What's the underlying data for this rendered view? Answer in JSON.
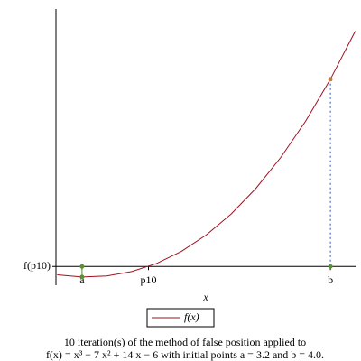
{
  "chart_data": {
    "type": "line",
    "x_label": "x",
    "series": [
      {
        "name": "f(x)",
        "color": "#a01020",
        "x": [
          3.12,
          3.2,
          3.28,
          3.36,
          3.44,
          3.52,
          3.6,
          3.68,
          3.76,
          3.84,
          3.92,
          4.0,
          4.08
        ],
        "values": [
          -0.089,
          -0.112,
          -0.101,
          -0.054,
          0.032,
          0.161,
          0.336,
          0.559,
          0.834,
          1.164,
          1.551,
          2,
          2.513
        ]
      }
    ],
    "points": {
      "x": [
        3.2,
        4.0
      ],
      "values": [
        -0.112,
        2
      ],
      "colors": [
        "#5a8f3a",
        "#c08040"
      ]
    },
    "xlim": [
      3.116,
      4.084
    ],
    "ylim": [
      -0.2,
      2.75
    ],
    "xticks": [
      {
        "value": 3.2,
        "label": "a"
      },
      {
        "value": 3.414,
        "label": "p10"
      },
      {
        "value": 4.0,
        "label": "b"
      }
    ],
    "yticks": [
      {
        "value": 0,
        "label": "f(p10)"
      }
    ],
    "caption": [
      "10 iteration(s) of the method of false position applied to",
      "f(x) = x³ − 7 x² + 14 x − 6 with initial points a = 3.2 and b = 4.0."
    ]
  }
}
